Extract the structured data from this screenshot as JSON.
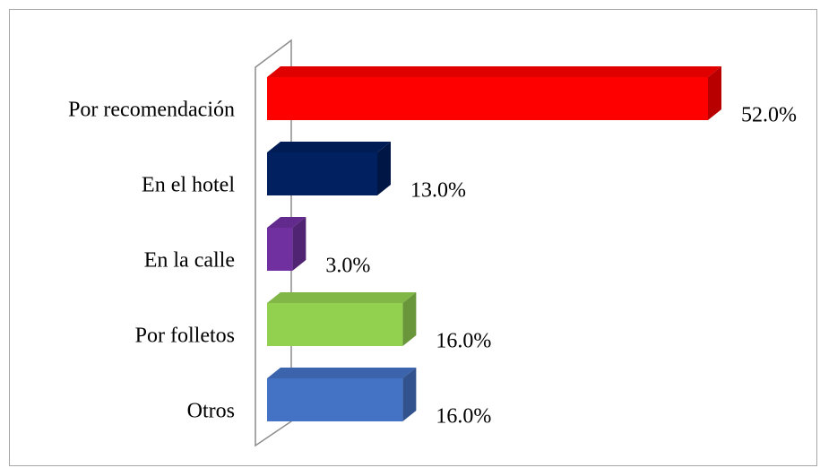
{
  "chart_data": {
    "type": "bar3d_horizontal",
    "categories": [
      "Por recomendación",
      "En el hotel",
      "En la calle",
      "Por folletos",
      "Otros"
    ],
    "values": [
      52,
      13,
      3,
      16,
      16
    ],
    "value_labels": [
      "52.0%",
      "13.0%",
      "3.0%",
      "16.0%",
      "16.0%"
    ],
    "colors": [
      "#ff0000",
      "#002060",
      "#7030a0",
      "#92d050",
      "#4472c4"
    ]
  }
}
